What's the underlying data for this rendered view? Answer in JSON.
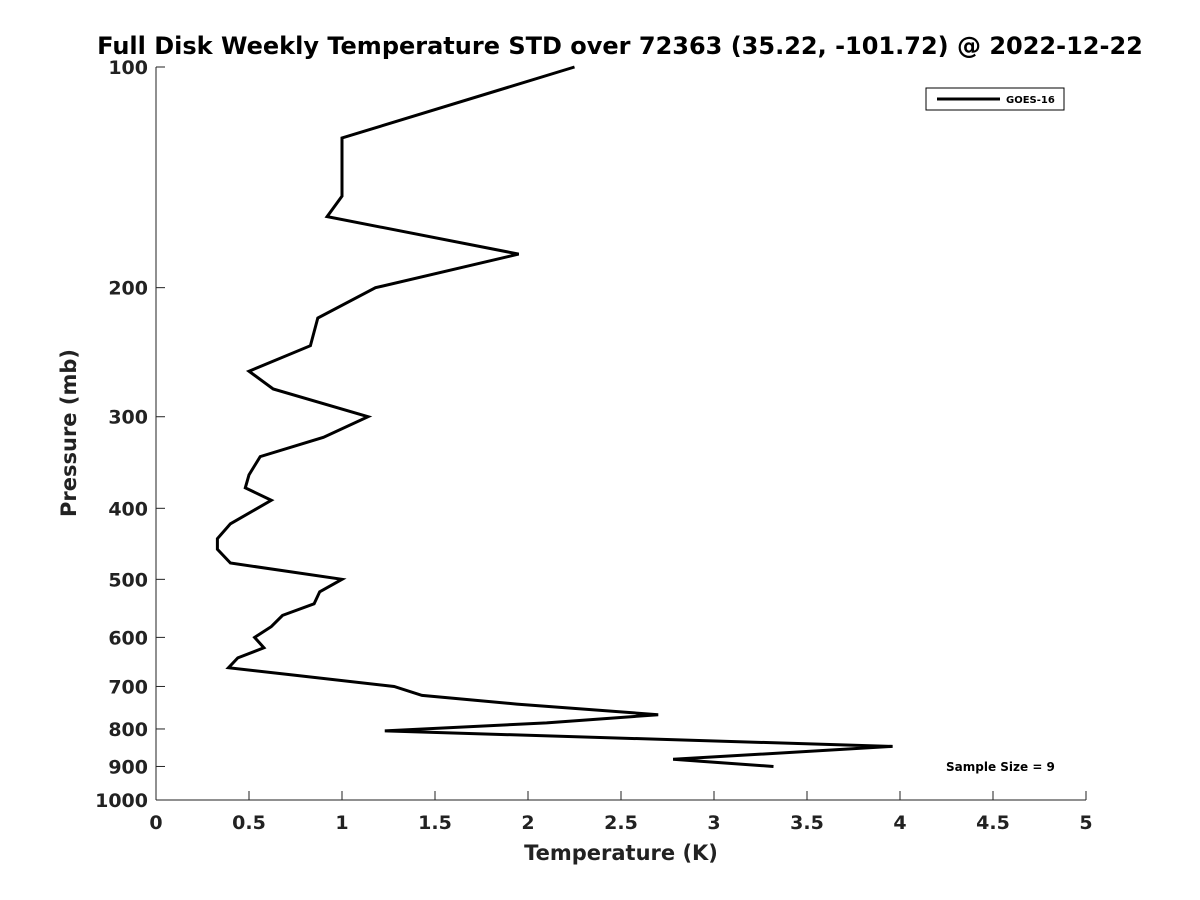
{
  "chart_data": {
    "type": "line",
    "title": "Full Disk Weekly Temperature STD over 72363 (35.22, -101.72) @ 2022-12-22",
    "xlabel": "Temperature (K)",
    "ylabel": "Pressure (mb)",
    "xlim": [
      0,
      5
    ],
    "ylim": [
      100,
      1000
    ],
    "y_scale": "log",
    "y_reversed": true,
    "grid": false,
    "legend_position": "top-right",
    "x_ticks": [
      0,
      0.5,
      1,
      1.5,
      2,
      2.5,
      3,
      3.5,
      4,
      4.5,
      5
    ],
    "x_tick_labels": [
      "0",
      "0.5",
      "1",
      "1.5",
      "2",
      "2.5",
      "3",
      "3.5",
      "4",
      "4.5",
      "5"
    ],
    "y_ticks": [
      100,
      200,
      300,
      400,
      500,
      600,
      700,
      800,
      900,
      1000
    ],
    "y_tick_labels": [
      "100",
      "200",
      "300",
      "400",
      "500",
      "600",
      "700",
      "800",
      "900",
      "1000"
    ],
    "series": [
      {
        "name": "GOES-16",
        "color": "#000000",
        "points": [
          [
            2.25,
            100
          ],
          [
            1.0,
            125
          ],
          [
            1.0,
            150
          ],
          [
            0.92,
            160
          ],
          [
            1.95,
            180
          ],
          [
            1.18,
            200
          ],
          [
            0.87,
            220
          ],
          [
            0.83,
            240
          ],
          [
            0.5,
            260
          ],
          [
            0.63,
            275
          ],
          [
            1.14,
            300
          ],
          [
            0.9,
            320
          ],
          [
            0.56,
            340
          ],
          [
            0.5,
            360
          ],
          [
            0.48,
            375
          ],
          [
            0.62,
            390
          ],
          [
            0.4,
            420
          ],
          [
            0.33,
            440
          ],
          [
            0.33,
            455
          ],
          [
            0.4,
            475
          ],
          [
            1.0,
            500
          ],
          [
            0.88,
            520
          ],
          [
            0.85,
            540
          ],
          [
            0.68,
            560
          ],
          [
            0.62,
            580
          ],
          [
            0.53,
            600
          ],
          [
            0.58,
            620
          ],
          [
            0.44,
            640
          ],
          [
            0.39,
            660
          ],
          [
            0.73,
            675
          ],
          [
            1.28,
            700
          ],
          [
            1.43,
            720
          ],
          [
            1.94,
            740
          ],
          [
            2.7,
            765
          ],
          [
            2.1,
            785
          ],
          [
            1.23,
            805
          ],
          [
            3.96,
            845
          ],
          [
            2.78,
            880
          ],
          [
            3.32,
            900
          ]
        ]
      }
    ],
    "annotations": [
      "Sample Size = 9"
    ]
  }
}
